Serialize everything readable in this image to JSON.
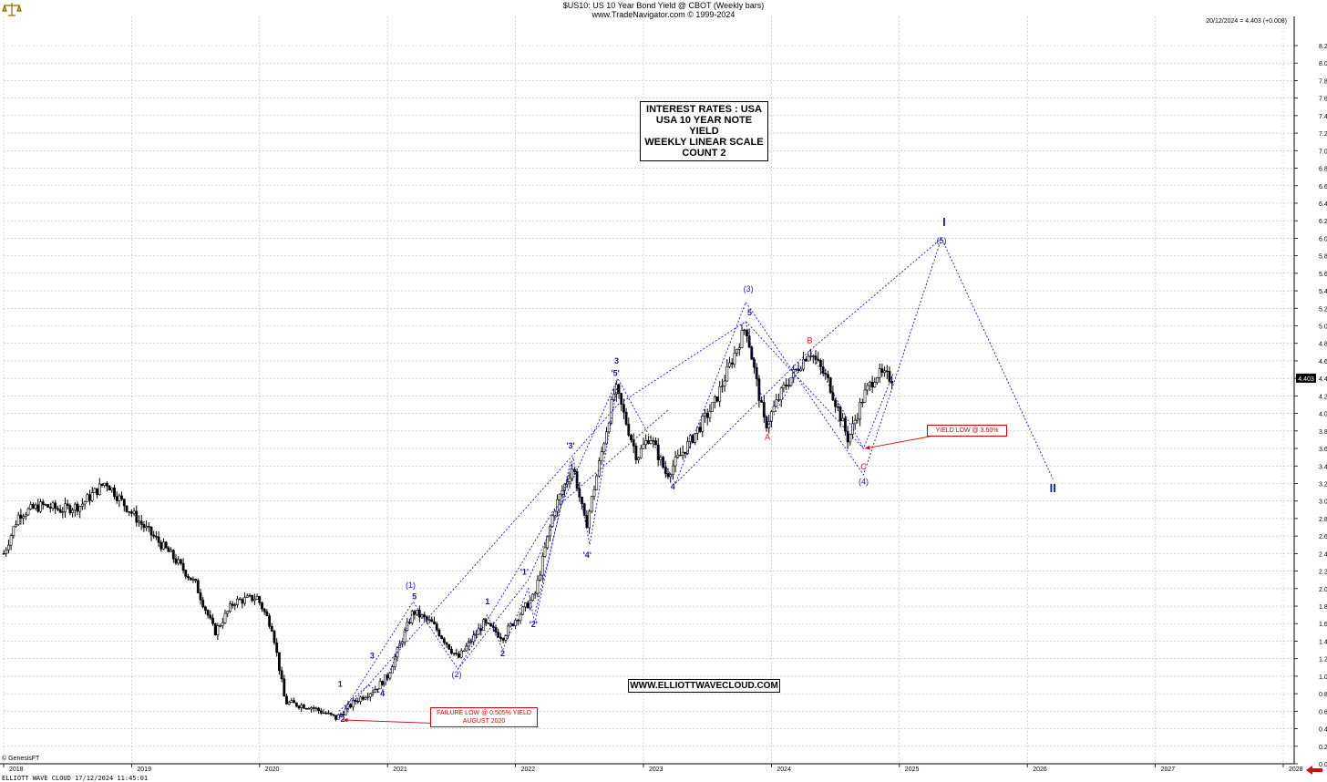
{
  "header": {
    "title": "$US10:  US 10 Year Bond Yield @ CBOT  (Weekly bars)",
    "source": "www.TradeNavigator.com © 1999-2024",
    "last_value": "20/12/2024 = 4.403 (+0.008)"
  },
  "footer": {
    "copyright": "© GenesisFT",
    "status": "ELLIOTT WAVE CLOUD   17/12/2024 11:45:01"
  },
  "info_box": [
    "INTEREST RATES : USA",
    "USA 10 YEAR NOTE YIELD",
    "WEEKLY LINEAR SCALE",
    "COUNT 2"
  ],
  "url_box": "WWW.ELLIOTTWAVECLOUD.COM",
  "annotations": {
    "failure_low": [
      "FAILURE LOW @ 0.505% YIELD",
      "AUGUST 2020"
    ],
    "yield_low": "YIELD LOW @ 3.60%"
  },
  "colors": {
    "wave_blue": "#1a1aa8",
    "wave_red": "#cc1111",
    "candle": "#000000",
    "grid": "#b8b8b8",
    "last_label_bg": "#000000"
  },
  "chart_data": {
    "type": "candlestick",
    "title": "$US10:  US 10 Year Bond Yield @ CBOT  (Weekly bars)",
    "ylim": [
      0,
      8.3
    ],
    "y_ticks": [
      "0.000",
      "0.200",
      "0.400",
      "0.600",
      "0.800",
      "1.000",
      "1.200",
      "1.400",
      "1.600",
      "1.800",
      "2.000",
      "2.200",
      "2.400",
      "2.600",
      "2.800",
      "3.000",
      "3.200",
      "3.400",
      "3.600",
      "3.800",
      "4.000",
      "4.200",
      "4.400",
      "4.600",
      "4.800",
      "5.000",
      "5.200",
      "5.400",
      "5.600",
      "5.800",
      "6.000",
      "6.200",
      "6.400",
      "6.600",
      "6.800",
      "7.000",
      "7.200",
      "7.400",
      "7.600",
      "7.800",
      "8.000",
      "8.200"
    ],
    "x_ticks": [
      "2018",
      "2019",
      "2020",
      "2021",
      "2022",
      "2023",
      "2024",
      "2025",
      "2026",
      "2027",
      "2028"
    ],
    "xlim": [
      2018.0,
      2028.2
    ],
    "last_price_label": "4.403",
    "grid": true,
    "price_path": [
      [
        2018.0,
        2.4
      ],
      [
        2018.12,
        2.85
      ],
      [
        2018.3,
        2.95
      ],
      [
        2018.45,
        2.9
      ],
      [
        2018.6,
        2.95
      ],
      [
        2018.8,
        3.22
      ],
      [
        2018.92,
        3.0
      ],
      [
        2019.1,
        2.7
      ],
      [
        2019.3,
        2.4
      ],
      [
        2019.5,
        2.05
      ],
      [
        2019.65,
        1.5
      ],
      [
        2019.8,
        1.85
      ],
      [
        2019.98,
        1.9
      ],
      [
        2020.1,
        1.55
      ],
      [
        2020.2,
        0.7
      ],
      [
        2020.4,
        0.65
      ],
      [
        2020.6,
        0.52
      ],
      [
        2020.75,
        0.72
      ],
      [
        2020.9,
        0.85
      ],
      [
        2021.0,
        1.0
      ],
      [
        2021.2,
        1.74
      ],
      [
        2021.35,
        1.6
      ],
      [
        2021.55,
        1.2
      ],
      [
        2021.75,
        1.6
      ],
      [
        2021.9,
        1.45
      ],
      [
        2022.0,
        1.65
      ],
      [
        2022.15,
        1.92
      ],
      [
        2022.3,
        2.9
      ],
      [
        2022.45,
        3.4
      ],
      [
        2022.55,
        2.7
      ],
      [
        2022.78,
        4.3
      ],
      [
        2022.95,
        3.5
      ],
      [
        2023.05,
        3.75
      ],
      [
        2023.18,
        3.3
      ],
      [
        2023.35,
        3.65
      ],
      [
        2023.55,
        4.1
      ],
      [
        2023.8,
        5.0
      ],
      [
        2023.95,
        3.85
      ],
      [
        2024.1,
        4.3
      ],
      [
        2024.3,
        4.72
      ],
      [
        2024.45,
        4.35
      ],
      [
        2024.6,
        3.7
      ],
      [
        2024.72,
        4.2
      ],
      [
        2024.82,
        4.45
      ],
      [
        2024.95,
        4.4
      ]
    ],
    "wave_labels": [
      {
        "text": "1",
        "x": 2020.63,
        "y": 0.88,
        "color": "blue",
        "bold": true
      },
      {
        "text": "2",
        "x": 2020.65,
        "y": 0.48,
        "color": "blue",
        "bold": true
      },
      {
        "text": "3",
        "x": 2020.88,
        "y": 1.2,
        "color": "blue",
        "bold": true
      },
      {
        "text": "4",
        "x": 2020.96,
        "y": 0.77,
        "color": "blue",
        "bold": true
      },
      {
        "text": "(1)",
        "x": 2021.18,
        "y": 2.01,
        "color": "blue",
        "bold": false
      },
      {
        "text": "5",
        "x": 2021.21,
        "y": 1.88,
        "color": "blue",
        "bold": true
      },
      {
        "text": "(2)",
        "x": 2021.54,
        "y": 0.99,
        "color": "blue",
        "bold": false
      },
      {
        "text": "1",
        "x": 2021.78,
        "y": 1.82,
        "color": "blue",
        "bold": true
      },
      {
        "text": "2",
        "x": 2021.9,
        "y": 1.23,
        "color": "blue",
        "bold": true
      },
      {
        "text": "'1'",
        "x": 2022.07,
        "y": 2.16,
        "color": "blue",
        "bold": true
      },
      {
        "text": "'2'",
        "x": 2022.14,
        "y": 1.56,
        "color": "blue",
        "bold": true
      },
      {
        "text": "'3'",
        "x": 2022.43,
        "y": 3.6,
        "color": "blue",
        "bold": true
      },
      {
        "text": "'4'",
        "x": 2022.56,
        "y": 2.35,
        "color": "blue",
        "bold": true
      },
      {
        "text": "3",
        "x": 2022.79,
        "y": 4.57,
        "color": "blue",
        "bold": true
      },
      {
        "text": "'5'",
        "x": 2022.78,
        "y": 4.43,
        "color": "blue",
        "bold": true
      },
      {
        "text": "4",
        "x": 2023.23,
        "y": 3.13,
        "color": "blue",
        "bold": true
      },
      {
        "text": "(3)",
        "x": 2023.82,
        "y": 5.39,
        "color": "blue",
        "bold": false
      },
      {
        "text": "5",
        "x": 2023.83,
        "y": 5.12,
        "color": "blue",
        "bold": true
      },
      {
        "text": "A",
        "x": 2023.97,
        "y": 3.7,
        "color": "red",
        "bold": false
      },
      {
        "text": "B",
        "x": 2024.3,
        "y": 4.8,
        "color": "red",
        "bold": false
      },
      {
        "text": "C",
        "x": 2024.72,
        "y": 3.36,
        "color": "red",
        "bold": false
      },
      {
        "text": "(4)",
        "x": 2024.72,
        "y": 3.19,
        "color": "blue",
        "bold": false
      },
      {
        "text": "I",
        "x": 2025.35,
        "y": 6.14,
        "color": "blue",
        "bold": true
      },
      {
        "text": "(5)",
        "x": 2025.33,
        "y": 5.94,
        "color": "blue",
        "bold": false
      },
      {
        "text": "II",
        "x": 2026.2,
        "y": 3.1,
        "color": "blue",
        "bold": true
      }
    ],
    "wave_lines": [
      [
        [
          2020.62,
          0.52
        ],
        [
          2021.2,
          1.85
        ],
        [
          2021.55,
          1.08
        ],
        [
          2022.1,
          2.1
        ],
        [
          2022.8,
          4.4
        ],
        [
          2023.25,
          3.2
        ],
        [
          2023.8,
          5.27
        ],
        [
          2024.72,
          3.3
        ],
        [
          2025.33,
          6.0
        ],
        [
          2026.2,
          3.25
        ]
      ],
      [
        [
          2020.62,
          0.52
        ],
        [
          2022.8,
          4.1
        ],
        [
          2023.8,
          5.05
        ],
        [
          2024.72,
          3.6
        ],
        [
          2024.95,
          4.45
        ]
      ],
      [
        [
          2021.55,
          1.08
        ],
        [
          2022.3,
          2.9
        ],
        [
          2023.2,
          4.05
        ]
      ],
      [
        [
          2022.15,
          1.7
        ],
        [
          2022.45,
          3.5
        ],
        [
          2022.58,
          2.5
        ],
        [
          2022.8,
          4.35
        ]
      ],
      [
        [
          2023.8,
          5.05
        ],
        [
          2023.97,
          3.85
        ],
        [
          2024.3,
          4.72
        ],
        [
          2024.72,
          3.6
        ]
      ],
      [
        [
          2023.25,
          3.2
        ],
        [
          2024.3,
          4.72
        ],
        [
          2025.33,
          6.0
        ]
      ],
      [
        [
          2020.62,
          0.6
        ],
        [
          2020.85,
          0.9
        ],
        [
          2020.95,
          0.8
        ],
        [
          2021.2,
          1.74
        ]
      ],
      [
        [
          2021.55,
          1.2
        ],
        [
          2021.78,
          1.7
        ],
        [
          2021.9,
          1.3
        ],
        [
          2022.1,
          2.0
        ],
        [
          2022.15,
          1.6
        ],
        [
          2022.43,
          3.45
        ]
      ]
    ],
    "arrows": [
      {
        "from": [
          2022.18,
          0.42
        ],
        "to": [
          2020.65,
          0.5
        ],
        "color": "red"
      },
      {
        "from": [
          2025.25,
          3.74
        ],
        "to": [
          2024.73,
          3.6
        ],
        "color": "red"
      }
    ]
  }
}
